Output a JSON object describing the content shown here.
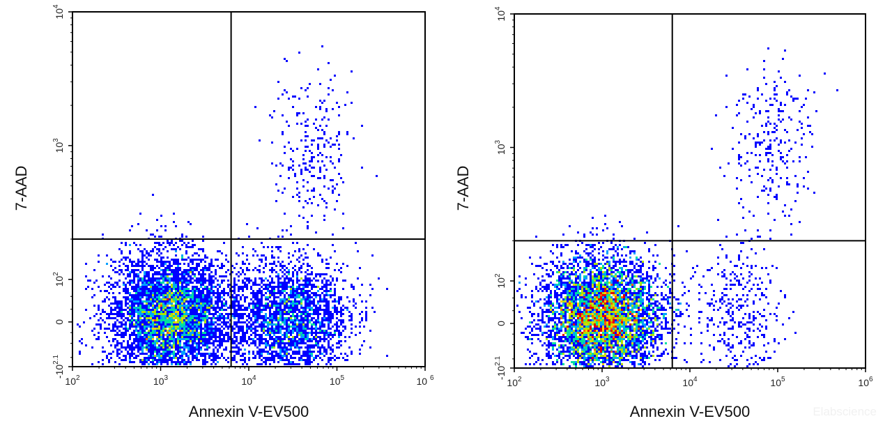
{
  "watermark": "Elabscience",
  "chart_data": [
    {
      "type": "scatter",
      "subtype": "flow-cytometry-density-dot-plot",
      "title": "",
      "xlabel": "Annexin V-EV500",
      "ylabel": "7-AAD",
      "x_scale": "biexponential",
      "y_scale": "biexponential",
      "xlim": [
        100,
        1000000
      ],
      "ylim": [
        -125.9,
        10000
      ],
      "x_ticks": [
        {
          "base": "10",
          "exp": "2"
        },
        {
          "base": "10",
          "exp": "3"
        },
        {
          "base": "10",
          "exp": "4"
        },
        {
          "base": "10",
          "exp": "5"
        },
        {
          "base": "10 ",
          "exp": "6"
        }
      ],
      "y_ticks": [
        {
          "base": "-10",
          "exp": "2.1"
        },
        {
          "base": "0",
          "exp": ""
        },
        {
          "base": "10",
          "exp": "2"
        },
        {
          "base": "10",
          "exp": "3"
        },
        {
          "base": "10",
          "exp": "4"
        }
      ],
      "quadrant_gate": {
        "x": 6300,
        "y": 200
      },
      "density_colormap": [
        "#0000ff",
        "#00a0ff",
        "#00e0a0",
        "#b0e000",
        "#ffd000",
        "#ff6000",
        "#e00000"
      ],
      "populations": [
        {
          "name": "",
          "center": [
            1300,
            15
          ],
          "events": 5200,
          "shape": "blob"
        },
        {
          "name": "",
          "center": [
            28000,
            5
          ],
          "events": 2800,
          "shape": "blob"
        },
        {
          "name": "",
          "center": [
            55000,
            900
          ],
          "events": 260,
          "shape": "sparse"
        }
      ]
    },
    {
      "type": "scatter",
      "subtype": "flow-cytometry-density-dot-plot",
      "title": "",
      "xlabel": "Annexin V-EV500",
      "ylabel": "7-AAD",
      "x_scale": "biexponential",
      "y_scale": "biexponential",
      "xlim": [
        100,
        1000000
      ],
      "ylim": [
        -125.9,
        10000
      ],
      "x_ticks": [
        {
          "base": "10",
          "exp": "2"
        },
        {
          "base": "10",
          "exp": "3"
        },
        {
          "base": "10",
          "exp": "4"
        },
        {
          "base": "10",
          "exp": "5"
        },
        {
          "base": "10",
          "exp": "6"
        }
      ],
      "y_ticks": [
        {
          "base": "-10",
          "exp": "2.1"
        },
        {
          "base": "0",
          "exp": ""
        },
        {
          "base": "10",
          "exp": "2"
        },
        {
          "base": "10",
          "exp": "3"
        },
        {
          "base": "10",
          "exp": "4"
        }
      ],
      "quadrant_gate": {
        "x": 6300,
        "y": 200
      },
      "density_colormap": [
        "#0000ff",
        "#00a0ff",
        "#00e0a0",
        "#b0e000",
        "#ffd000",
        "#ff6000",
        "#e00000"
      ],
      "populations": [
        {
          "name": "",
          "center": [
            1000,
            15
          ],
          "events": 8200,
          "shape": "blob"
        },
        {
          "name": "",
          "center": [
            35000,
            10
          ],
          "events": 380,
          "shape": "sparse"
        },
        {
          "name": "",
          "center": [
            90000,
            1100
          ],
          "events": 260,
          "shape": "sparse"
        }
      ]
    }
  ]
}
